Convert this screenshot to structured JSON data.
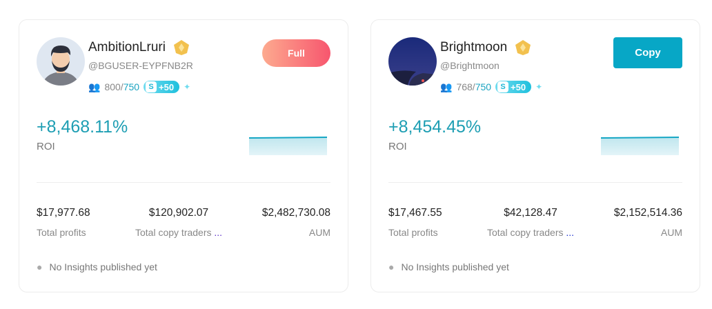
{
  "traders": [
    {
      "name": "AmbitionLruri",
      "handle": "@BGUSER-EYPFNB2R",
      "followers": "800",
      "capacity": "750",
      "bonus": "+50",
      "action": "Full",
      "roi": "+8,468.11%",
      "roi_label": "ROI",
      "stats": [
        {
          "value": "$17,977.68",
          "label": "Total profits"
        },
        {
          "value": "$120,902.07",
          "label": "Total copy traders",
          "ellipsis": "..."
        },
        {
          "value": "$2,482,730.08",
          "label": "AUM"
        }
      ],
      "insights": "No Insights published yet"
    },
    {
      "name": "Brightmoon",
      "handle": "@Brightmoon",
      "followers": "768",
      "capacity": "750",
      "bonus": "+50",
      "action": "Copy",
      "roi": "+8,454.45%",
      "roi_label": "ROI",
      "stats": [
        {
          "value": "$17,467.55",
          "label": "Total profits"
        },
        {
          "value": "$42,128.47",
          "label": "Total copy traders",
          "ellipsis": "..."
        },
        {
          "value": "$2,152,514.36",
          "label": "AUM"
        }
      ],
      "insights": "No Insights published yet"
    }
  ],
  "colors": {
    "accent": "#07a7c6",
    "roi": "#1d9eb3",
    "full_start": "#fdaa8f",
    "full_end": "#f7566e"
  }
}
